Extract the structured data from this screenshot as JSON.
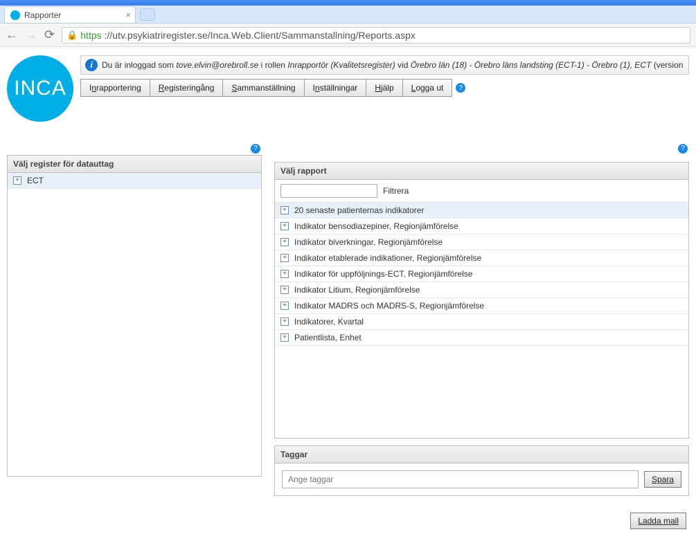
{
  "browser": {
    "tab_title": "Rapporter",
    "favicon_text": "INCA",
    "url_https": "https",
    "url_rest": "://utv.psykiatriregister.se/Inca.Web.Client/Sammanstallning/Reports.aspx"
  },
  "logo": {
    "text": "INCA",
    "bg": "#00aee7"
  },
  "info": {
    "prefix": "Du är inloggad som ",
    "user": "tove.elvin@orebroll.se",
    "mid1": " i rollen ",
    "role": "Inrapportör (Kvalitetsregister)",
    "mid2": " vid ",
    "context": "Örebro län (18) - Örebro läns landsting (ECT-1) - Örebro (1), ECT",
    "tail": " (version "
  },
  "menu": {
    "items": [
      {
        "pre": "I",
        "u": "n",
        "post": "rapportering"
      },
      {
        "pre": "",
        "u": "R",
        "post": "egisteringång"
      },
      {
        "pre": "",
        "u": "S",
        "post": "ammanställning"
      },
      {
        "pre": "I",
        "u": "n",
        "post": "ställningar"
      },
      {
        "pre": "",
        "u": "H",
        "post": "jälp"
      },
      {
        "pre": "",
        "u": "L",
        "post": "ogga ut"
      }
    ]
  },
  "left_panel": {
    "title": "Välj register för datauttag",
    "rows": [
      {
        "label": "ECT",
        "selected": true
      }
    ]
  },
  "right_panel": {
    "title": "Välj rapport",
    "filter_label": "Filtrera",
    "rows": [
      {
        "label": "20 senaste patienternas indikatorer",
        "selected": true
      },
      {
        "label": "Indikator bensodiazepiner, Regionjämförelse",
        "selected": false
      },
      {
        "label": "Indikator biverkningar, Regionjämförelse",
        "selected": false
      },
      {
        "label": "Indikator etablerade indikationer, Regionjämförelse",
        "selected": false
      },
      {
        "label": "Indikator för uppföljnings-ECT, Regionjämförelse",
        "selected": false
      },
      {
        "label": "Indikator Litium, Regionjämförelse",
        "selected": false
      },
      {
        "label": "Indikator MADRS och MADRS-S, Regionjämförelse",
        "selected": false
      },
      {
        "label": "Indikatorer, Kvartal",
        "selected": false
      },
      {
        "label": "Patientlista, Enhet",
        "selected": false
      }
    ]
  },
  "tags_panel": {
    "title": "Taggar",
    "placeholder": "Ange taggar",
    "save_label": "Spara"
  },
  "bottom": {
    "load_template_label": "Ladda mall"
  },
  "colors": {
    "accent": "#00aee7",
    "panel_border": "#bdbdbd",
    "selected_row": "#e8f1fb",
    "https_green": "#2aa836",
    "info_blue": "#1976d2"
  }
}
